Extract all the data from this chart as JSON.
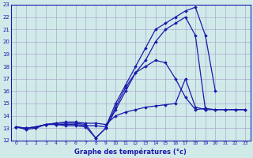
{
  "xlabel": "Graphe des températures (°c)",
  "background_color": "#d0eaea",
  "grid_color": "#aaaacc",
  "line_color": "#1a1aaa",
  "xlim": [
    -0.5,
    23.5
  ],
  "ylim": [
    12,
    23
  ],
  "xticks": [
    0,
    1,
    2,
    3,
    4,
    5,
    6,
    7,
    8,
    9,
    10,
    11,
    12,
    13,
    14,
    15,
    16,
    17,
    18,
    19,
    20,
    21,
    22,
    23
  ],
  "yticks": [
    12,
    13,
    14,
    15,
    16,
    17,
    18,
    19,
    20,
    21,
    22,
    23
  ],
  "series": [
    {
      "x": [
        0,
        1,
        2,
        3,
        4,
        5,
        6,
        7,
        8,
        9,
        10,
        11,
        12,
        13,
        14,
        15,
        16,
        17,
        18,
        19,
        20,
        21,
        22,
        23
      ],
      "y": [
        13.1,
        12.9,
        13.0,
        13.3,
        13.3,
        13.2,
        13.2,
        13.1,
        12.2,
        13.0,
        14.7,
        16.3,
        17.5,
        18.0,
        18.5,
        18.3,
        17.0,
        15.5,
        14.5,
        14.6,
        14.5,
        14.5,
        14.5,
        14.5
      ]
    },
    {
      "x": [
        0,
        1,
        2,
        3,
        4,
        5,
        6,
        7,
        8,
        9,
        10,
        11,
        12,
        13,
        14,
        15,
        16,
        17,
        18,
        19,
        20
      ],
      "y": [
        13.1,
        13.0,
        13.1,
        13.3,
        13.3,
        13.3,
        13.3,
        13.2,
        13.2,
        13.1,
        15.0,
        16.5,
        18.0,
        19.5,
        21.0,
        21.5,
        22.0,
        22.5,
        22.8,
        20.5,
        16.0
      ]
    },
    {
      "x": [
        0,
        1,
        2,
        3,
        4,
        5,
        6,
        7,
        8,
        9,
        10,
        11,
        12,
        13,
        14,
        15,
        16,
        17,
        18,
        19
      ],
      "y": [
        13.1,
        13.0,
        13.1,
        13.3,
        13.4,
        13.4,
        13.4,
        13.3,
        12.2,
        13.0,
        14.5,
        16.0,
        17.5,
        18.5,
        20.0,
        21.0,
        21.5,
        22.0,
        20.5,
        14.5
      ]
    },
    {
      "x": [
        0,
        1,
        2,
        3,
        4,
        5,
        6,
        7,
        8,
        9,
        10,
        11,
        12,
        13,
        14,
        15,
        16,
        17,
        18,
        19,
        20,
        21,
        22,
        23
      ],
      "y": [
        13.1,
        13.0,
        13.1,
        13.3,
        13.4,
        13.5,
        13.5,
        13.4,
        13.4,
        13.3,
        14.0,
        14.3,
        14.5,
        14.7,
        14.8,
        14.9,
        15.0,
        17.0,
        14.7,
        14.5,
        14.5,
        14.5,
        14.5,
        14.5
      ]
    }
  ]
}
